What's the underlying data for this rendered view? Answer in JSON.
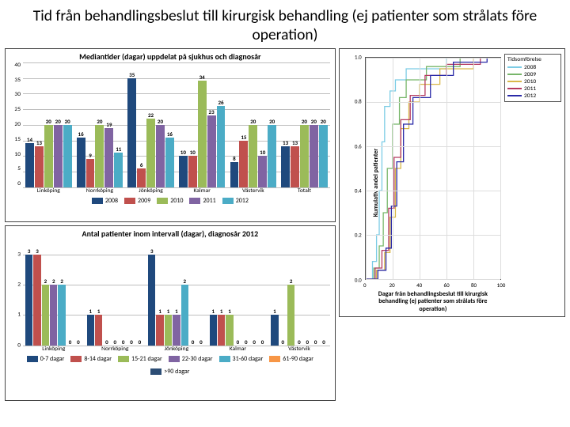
{
  "slide_title": "Tid från behandlingsbeslut till kirurgisk behandling (ej patienter som strålats före operation)",
  "chart_a": {
    "type": "bar",
    "title": "Mediantider (dagar) uppdelat på sjukhus och diagnosår",
    "ylim": [
      0,
      40
    ],
    "ytick_step": 5,
    "grid_color": "#bfbfbf",
    "sites": [
      "Linköping",
      "Norrköping",
      "Jönköping",
      "Kalmar",
      "Västervik",
      "Totalt"
    ],
    "years": [
      "2008",
      "2009",
      "2010",
      "2011",
      "2012"
    ],
    "year_colors": {
      "2008": "#1f497d",
      "2009": "#c0504d",
      "2010": "#9bbb59",
      "2011": "#8064a2",
      "2012": "#4bacc6"
    },
    "values": [
      [
        14,
        13,
        20,
        20,
        20
      ],
      [
        16,
        9,
        20,
        19,
        11
      ],
      [
        35,
        6,
        22,
        20,
        16
      ],
      [
        10,
        10,
        34,
        23,
        26
      ],
      [
        8,
        15,
        20,
        10,
        20
      ],
      [
        13,
        13,
        20,
        20,
        20
      ]
    ],
    "label_fontsize": 7
  },
  "chart_b": {
    "type": "bar",
    "title": "Antal patienter inom intervall (dagar), diagnosår 2012",
    "ylim": [
      0,
      3.5
    ],
    "ymax_label": 3,
    "grid_color": "#bfbfbf",
    "sites": [
      "Linköping",
      "Norrköping",
      "Jönköping",
      "Kalmar",
      "Västervik"
    ],
    "bins": [
      "0-7 dagar",
      "8-14 dagar",
      "15-21 dagar",
      "22-30 dagar",
      "31-60 dagar",
      "61-90 dagar",
      ">90 dagar"
    ],
    "bin_colors": {
      "0-7 dagar": "#1f497d",
      "8-14 dagar": "#c0504d",
      "15-21 dagar": "#9bbb59",
      "22-30 dagar": "#8064a2",
      "31-60 dagar": "#4bacc6",
      "61-90 dagar": "#f79646",
      ">90 dagar": "#2c4d75"
    },
    "values": [
      [
        3,
        3,
        2,
        2,
        2,
        0,
        0
      ],
      [
        1,
        1,
        0,
        0,
        0,
        0,
        0
      ],
      [
        3,
        1,
        1,
        1,
        2,
        0,
        0
      ],
      [
        1,
        1,
        1,
        0,
        0,
        0,
        0
      ],
      [
        1,
        0,
        2,
        0,
        0,
        0,
        0
      ]
    ],
    "label_fontsize": 7
  },
  "chart_c": {
    "type": "survival-step",
    "ylabel": "Kumulativ andel patienter",
    "xlabel": "Dagar från behandlingsbeslut till kirurgisk behandling (ej patienter som strålats före operation)",
    "legend_title": "Tidsomförelse",
    "years": [
      "2008",
      "2009",
      "2010",
      "2011",
      "2012"
    ],
    "year_colors": {
      "2008": "#7ccce5",
      "2009": "#77b66a",
      "2010": "#d9b84a",
      "2011": "#b53a60",
      "2012": "#2a2aa8"
    },
    "xlim": [
      0,
      100
    ],
    "xtick_step": 20,
    "ylim": [
      0,
      1.0
    ],
    "ytick_step": 0.2,
    "grid_color": "#dddddd",
    "series": {
      "2008": [
        [
          0,
          0
        ],
        [
          5,
          0.08
        ],
        [
          8,
          0.2
        ],
        [
          10,
          0.4
        ],
        [
          12,
          0.62
        ],
        [
          14,
          0.78
        ],
        [
          18,
          0.85
        ],
        [
          22,
          0.9
        ],
        [
          30,
          0.95
        ],
        [
          60,
          1.0
        ],
        [
          100,
          1.0
        ]
      ],
      "2009": [
        [
          0,
          0
        ],
        [
          6,
          0.05
        ],
        [
          10,
          0.15
        ],
        [
          13,
          0.3
        ],
        [
          16,
          0.5
        ],
        [
          20,
          0.7
        ],
        [
          25,
          0.82
        ],
        [
          30,
          0.9
        ],
        [
          45,
          0.96
        ],
        [
          70,
          1.0
        ],
        [
          100,
          1.0
        ]
      ],
      "2010": [
        [
          0,
          0
        ],
        [
          8,
          0.04
        ],
        [
          14,
          0.12
        ],
        [
          18,
          0.28
        ],
        [
          22,
          0.5
        ],
        [
          26,
          0.68
        ],
        [
          32,
          0.8
        ],
        [
          40,
          0.88
        ],
        [
          55,
          0.95
        ],
        [
          80,
          1.0
        ],
        [
          100,
          1.0
        ]
      ],
      "2011": [
        [
          0,
          0
        ],
        [
          7,
          0.05
        ],
        [
          12,
          0.13
        ],
        [
          17,
          0.32
        ],
        [
          21,
          0.55
        ],
        [
          26,
          0.72
        ],
        [
          33,
          0.83
        ],
        [
          44,
          0.92
        ],
        [
          60,
          0.97
        ],
        [
          85,
          1.0
        ],
        [
          100,
          1.0
        ]
      ],
      "2012": [
        [
          0,
          0
        ],
        [
          9,
          0.04
        ],
        [
          15,
          0.14
        ],
        [
          19,
          0.33
        ],
        [
          23,
          0.53
        ],
        [
          28,
          0.7
        ],
        [
          35,
          0.82
        ],
        [
          48,
          0.92
        ],
        [
          65,
          0.98
        ],
        [
          90,
          1.0
        ],
        [
          100,
          1.0
        ]
      ]
    }
  }
}
